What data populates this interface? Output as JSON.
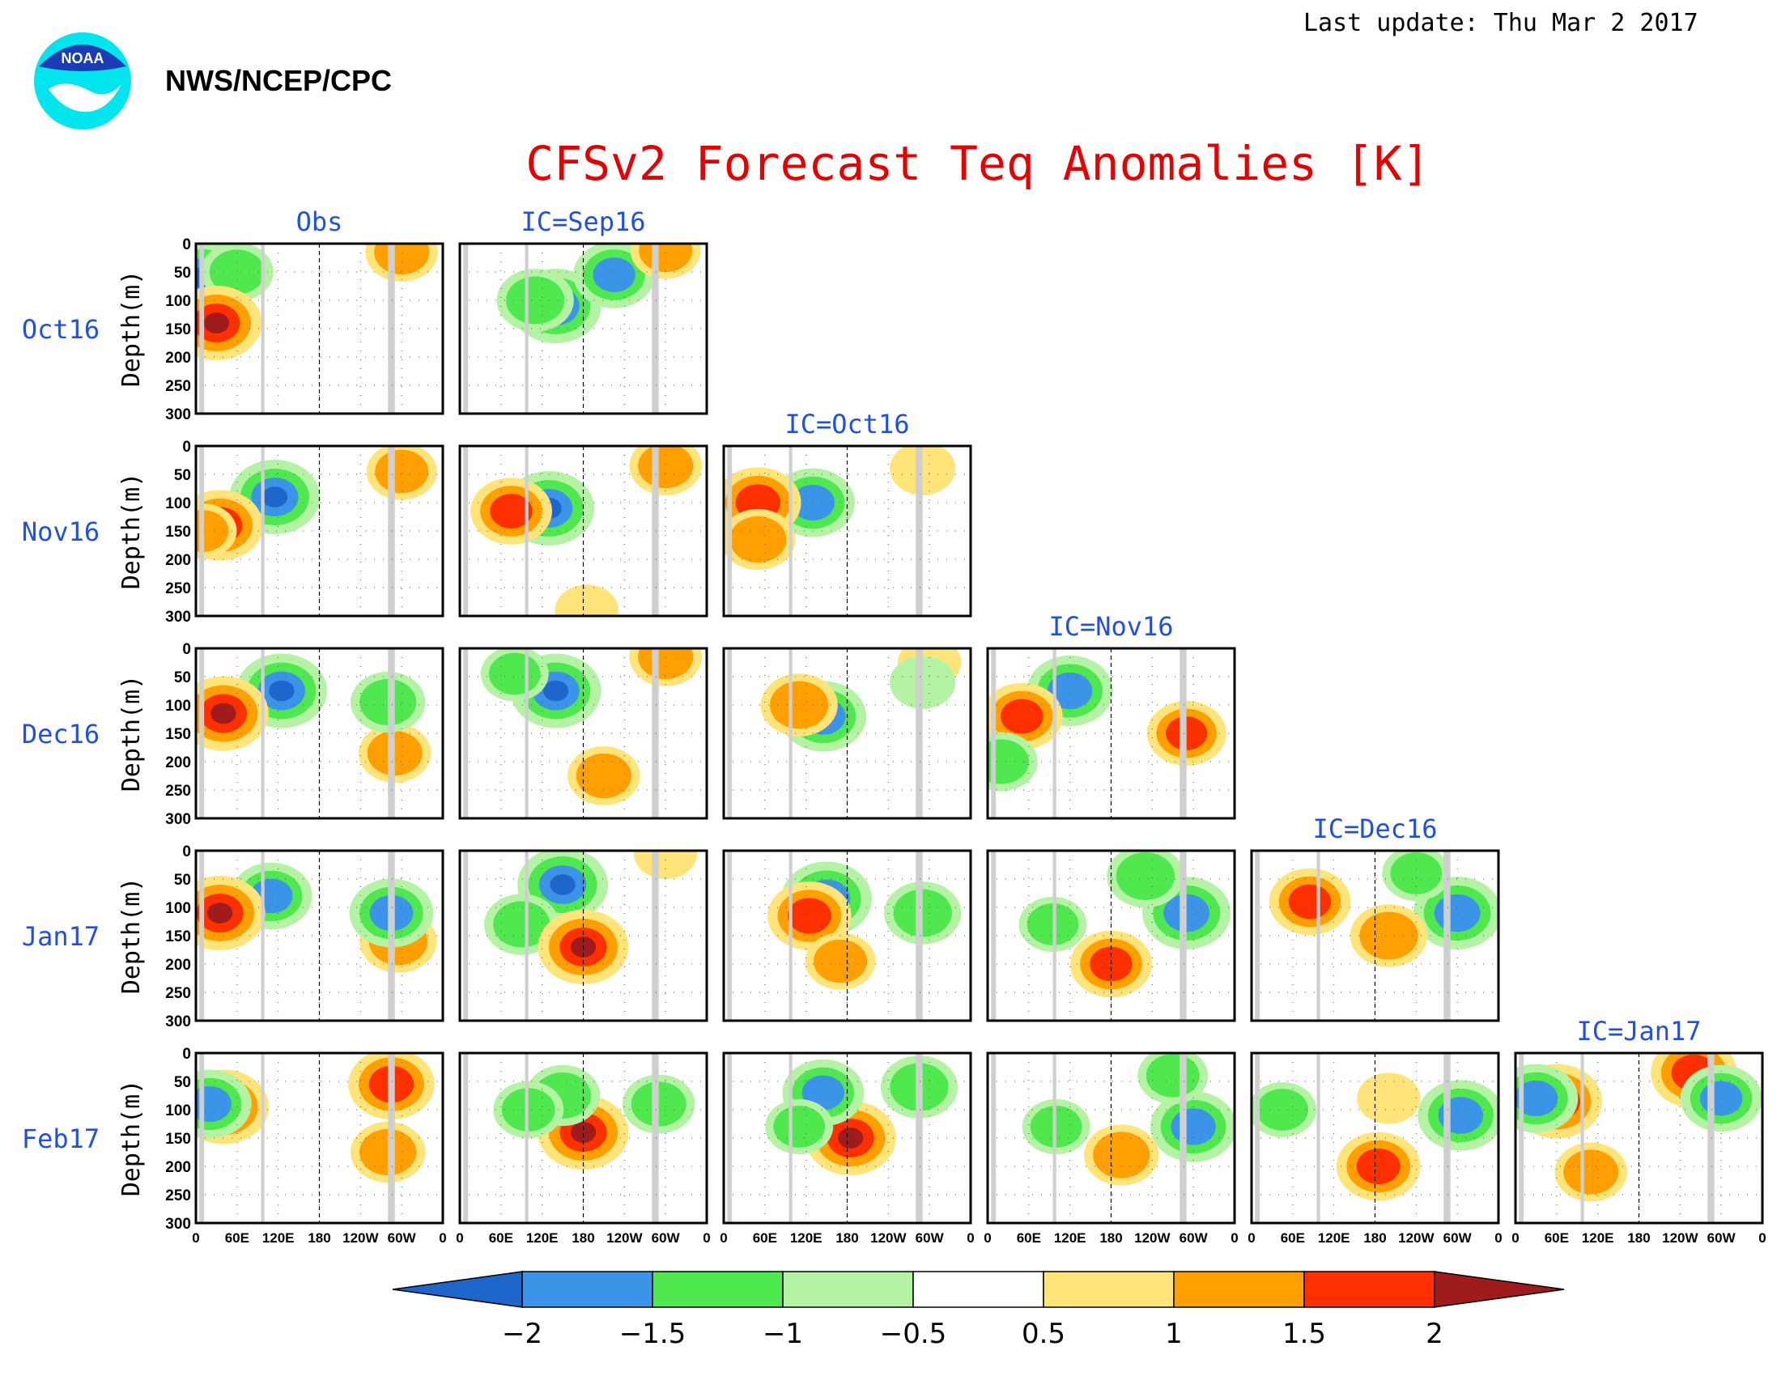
{
  "header": {
    "agency": "NWS/NCEP/CPC",
    "logo_text": "NOAA",
    "last_update": "Last update: Thu Mar 2 2017",
    "title": "CFSv2 Forecast Teq Anomalies [K]"
  },
  "chart_data": {
    "type": "heatmap",
    "title": "CFSv2 Forecast Teq Anomalies [K]",
    "ylabel": "Depth(m)",
    "ylim": [
      300,
      0
    ],
    "y_ticks": [
      "0",
      "50",
      "100",
      "150",
      "200",
      "250",
      "300"
    ],
    "x_ticks": [
      "0",
      "60E",
      "120E",
      "180",
      "120W",
      "60W",
      "0"
    ],
    "row_labels": [
      "Oct16",
      "Nov16",
      "Dec16",
      "Jan17",
      "Feb17"
    ],
    "column_titles": [
      "Obs",
      "IC=Sep16",
      "IC=Oct16",
      "IC=Nov16",
      "IC=Dec16",
      "IC=Jan17"
    ],
    "land_bands_longitude": [
      [
        5,
        12
      ],
      [
        95,
        100
      ],
      [
        280,
        290
      ]
    ],
    "dateline_longitude": 180,
    "panels": [
      {
        "row": 0,
        "col": 0,
        "features": [
          [
            10,
            60,
            -2.0
          ],
          [
            300,
            15,
            1.2
          ],
          [
            60,
            50,
            -1.2
          ],
          [
            30,
            140,
            2.0
          ]
        ]
      },
      {
        "row": 0,
        "col": 1,
        "features": [
          [
            140,
            110,
            -2.0
          ],
          [
            110,
            100,
            -1.4
          ],
          [
            225,
            55,
            -1.6
          ],
          [
            300,
            12,
            1.1
          ]
        ]
      },
      {
        "row": 1,
        "col": 0,
        "features": [
          [
            115,
            90,
            -2.0
          ],
          [
            300,
            45,
            1.1
          ],
          [
            35,
            140,
            1.8
          ],
          [
            10,
            150,
            1.0
          ]
        ]
      },
      {
        "row": 1,
        "col": 1,
        "features": [
          [
            130,
            110,
            -2.0
          ],
          [
            300,
            35,
            1.2
          ],
          [
            75,
            115,
            1.6
          ],
          [
            185,
            290,
            0.8
          ]
        ]
      },
      {
        "row": 1,
        "col": 2,
        "features": [
          [
            130,
            100,
            -1.7
          ],
          [
            50,
            100,
            1.8
          ],
          [
            290,
            40,
            0.9
          ],
          [
            50,
            165,
            1.3
          ]
        ]
      },
      {
        "row": 2,
        "col": 0,
        "features": [
          [
            125,
            75,
            -2.0
          ],
          [
            40,
            115,
            2.0
          ],
          [
            290,
            185,
            1.2
          ],
          [
            280,
            95,
            -1.3
          ]
        ]
      },
      {
        "row": 2,
        "col": 1,
        "features": [
          [
            140,
            75,
            -2.0
          ],
          [
            300,
            15,
            1.2
          ],
          [
            210,
            225,
            1.2
          ],
          [
            80,
            45,
            -1.0
          ]
        ]
      },
      {
        "row": 2,
        "col": 2,
        "features": [
          [
            145,
            120,
            -1.8
          ],
          [
            300,
            25,
            0.8
          ],
          [
            110,
            100,
            1.4
          ],
          [
            290,
            60,
            -0.9
          ]
        ]
      },
      {
        "row": 2,
        "col": 3,
        "features": [
          [
            120,
            75,
            -1.8
          ],
          [
            50,
            120,
            1.6
          ],
          [
            290,
            150,
            1.5
          ],
          [
            20,
            200,
            -1.2
          ]
        ]
      },
      {
        "row": 3,
        "col": 0,
        "features": [
          [
            110,
            80,
            -1.6
          ],
          [
            35,
            110,
            2.0
          ],
          [
            295,
            160,
            1.4
          ],
          [
            285,
            110,
            -1.7
          ]
        ]
      },
      {
        "row": 3,
        "col": 1,
        "features": [
          [
            150,
            60,
            -2.0
          ],
          [
            90,
            130,
            -1.3
          ],
          [
            180,
            170,
            2.0
          ],
          [
            300,
            5,
            0.8
          ]
        ]
      },
      {
        "row": 3,
        "col": 2,
        "features": [
          [
            150,
            85,
            -2.0
          ],
          [
            290,
            110,
            -1.4
          ],
          [
            125,
            115,
            1.7
          ],
          [
            170,
            195,
            1.1
          ]
        ]
      },
      {
        "row": 3,
        "col": 3,
        "features": [
          [
            290,
            110,
            -1.9
          ],
          [
            230,
            45,
            -1.4
          ],
          [
            180,
            200,
            1.6
          ],
          [
            95,
            130,
            -1.0
          ]
        ]
      },
      {
        "row": 3,
        "col": 4,
        "features": [
          [
            300,
            110,
            -1.9
          ],
          [
            240,
            40,
            -1.0
          ],
          [
            85,
            90,
            1.6
          ],
          [
            200,
            150,
            1.4
          ]
        ]
      },
      {
        "row": 4,
        "col": 0,
        "features": [
          [
            40,
            95,
            2.0
          ],
          [
            285,
            55,
            1.8
          ],
          [
            280,
            175,
            1.3
          ],
          [
            20,
            90,
            -1.7
          ]
        ]
      },
      {
        "row": 4,
        "col": 1,
        "features": [
          [
            180,
            140,
            2.0
          ],
          [
            150,
            75,
            -1.3
          ],
          [
            290,
            90,
            -1.2
          ],
          [
            100,
            100,
            -1.1
          ]
        ]
      },
      {
        "row": 4,
        "col": 2,
        "features": [
          [
            185,
            150,
            2.0
          ],
          [
            145,
            70,
            -1.6
          ],
          [
            285,
            60,
            -1.4
          ],
          [
            110,
            130,
            -1.0
          ]
        ]
      },
      {
        "row": 4,
        "col": 3,
        "features": [
          [
            300,
            130,
            -1.8
          ],
          [
            270,
            40,
            -1.1
          ],
          [
            195,
            180,
            1.3
          ],
          [
            100,
            130,
            -1.0
          ]
        ]
      },
      {
        "row": 4,
        "col": 4,
        "features": [
          [
            305,
            110,
            -1.8
          ],
          [
            185,
            200,
            1.7
          ],
          [
            200,
            80,
            0.8
          ],
          [
            45,
            100,
            -1.0
          ]
        ]
      },
      {
        "row": 4,
        "col": 5,
        "features": [
          [
            60,
            85,
            2.0
          ],
          [
            260,
            35,
            1.8
          ],
          [
            300,
            80,
            -1.6
          ],
          [
            110,
            210,
            1.2
          ],
          [
            30,
            80,
            -1.7
          ]
        ]
      }
    ],
    "colorbar": {
      "tick_labels": [
        "−2",
        "−1.5",
        "−1",
        "−0.5",
        "0.5",
        "1",
        "1.5",
        "2"
      ],
      "colors": [
        "#1f66cc",
        "#3c94e8",
        "#4fe84f",
        "#b4f3a4",
        "#ffffff",
        "#ffe47a",
        "#ffa000",
        "#ff3000",
        "#a01c1c"
      ]
    },
    "colors": {
      "land_mask": "#cfcfcf",
      "label_blue": "#1f4fe6",
      "title_red": "#e60000"
    }
  }
}
